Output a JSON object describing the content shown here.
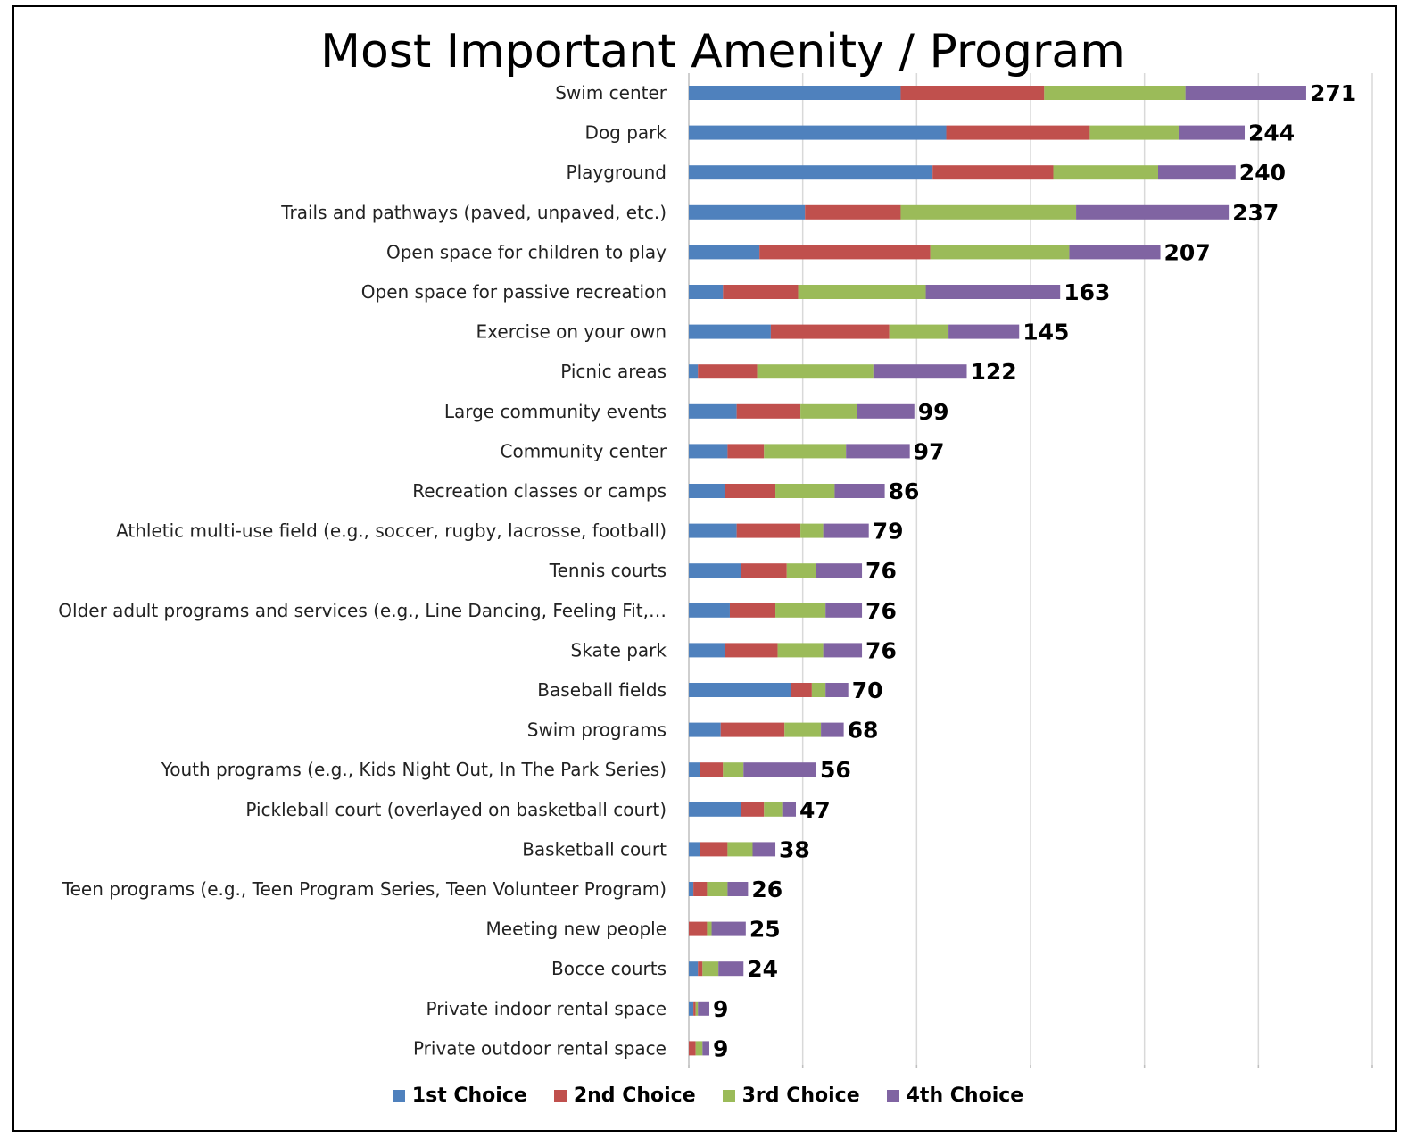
{
  "chart_data": {
    "type": "bar",
    "orientation": "horizontal",
    "stacked": true,
    "title": "Most Important Amenity / Program",
    "grid": true,
    "legend_position": "bottom",
    "categories": [
      "Swim center",
      "Dog park",
      "Playground",
      "Trails and pathways (paved, unpaved, etc.)",
      "Open space for children to play",
      "Open space for passive recreation",
      "Exercise on your own",
      "Picnic areas",
      "Large community events",
      "Community center",
      "Recreation classes or camps",
      "Athletic multi-use field (e.g., soccer, rugby, lacrosse, football)",
      "Tennis courts",
      "Older adult programs and services (e.g., Line Dancing, Feeling Fit,…",
      "Skate park",
      "Baseball fields",
      "Swim programs",
      "Youth programs (e.g., Kids Night Out, In The Park Series)",
      "Pickleball court (overlayed on basketball court)",
      "Basketball court",
      "Teen programs (e.g., Teen Program Series, Teen Volunteer Program)",
      "Meeting new people",
      "Bocce courts",
      "Private indoor rental space",
      "Private outdoor rental space"
    ],
    "series": [
      {
        "name": "1st Choice",
        "color": "#4f81bd",
        "values": [
          93,
          113,
          107,
          51,
          31,
          15,
          36,
          4,
          21,
          17,
          16,
          21,
          23,
          18,
          16,
          45,
          14,
          5,
          23,
          5,
          2,
          0,
          4,
          2,
          0
        ]
      },
      {
        "name": "2nd Choice",
        "color": "#c0504d",
        "values": [
          63,
          63,
          53,
          42,
          75,
          33,
          52,
          26,
          28,
          16,
          22,
          28,
          20,
          20,
          23,
          9,
          28,
          10,
          10,
          12,
          6,
          8,
          2,
          1,
          3
        ]
      },
      {
        "name": "3rd Choice",
        "color": "#9bbb59",
        "values": [
          62,
          39,
          46,
          77,
          61,
          56,
          26,
          51,
          25,
          36,
          26,
          10,
          13,
          22,
          20,
          6,
          16,
          9,
          8,
          11,
          9,
          2,
          7,
          1,
          3
        ]
      },
      {
        "name": "4th Choice",
        "color": "#8064a2",
        "values": [
          53,
          29,
          34,
          67,
          40,
          59,
          31,
          41,
          25,
          28,
          22,
          20,
          20,
          16,
          17,
          10,
          10,
          32,
          6,
          10,
          9,
          15,
          11,
          5,
          3
        ]
      }
    ],
    "totals": [
      271,
      244,
      240,
      237,
      207,
      163,
      145,
      122,
      99,
      97,
      86,
      79,
      76,
      76,
      76,
      70,
      68,
      56,
      47,
      38,
      26,
      25,
      24,
      9,
      9
    ],
    "xlim": [
      0,
      300
    ]
  }
}
